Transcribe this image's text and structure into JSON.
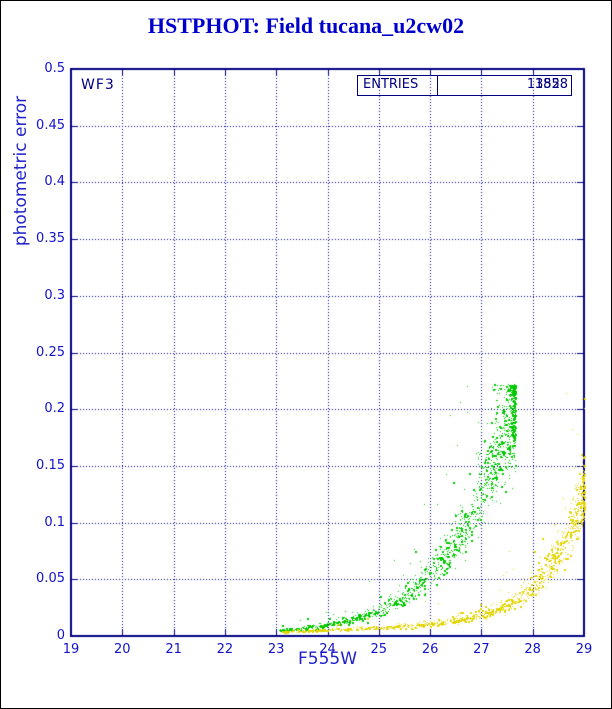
{
  "page": {
    "title": "HSTPHOT: Field tucana_u2cw02"
  },
  "plot": {
    "camera_label": "WF3",
    "entries_label": "ENTRIES",
    "entries_counts": [
      "1858",
      "1352"
    ],
    "xlabel": "F555W",
    "ylabel": "photometric error"
  },
  "colors": {
    "frame": "#000080",
    "grid": "#000080",
    "title_text": "#0000cc",
    "axis_text": "#2222cc",
    "tick_text": "#1313cc",
    "series_green": "#00c800",
    "series_yellow": "#e3d400"
  },
  "chart_data": {
    "type": "scatter",
    "title": "HSTPHOT: Field tucana_u2cw02",
    "annotation": "WF3",
    "xlabel": "F555W",
    "ylabel": "photometric error",
    "xlim": [
      19,
      29
    ],
    "ylim": [
      0,
      0.5
    ],
    "xticks": [
      19,
      20,
      21,
      22,
      23,
      24,
      25,
      26,
      27,
      28,
      29
    ],
    "yticks": [
      0,
      0.05,
      0.1,
      0.15,
      0.2,
      0.25,
      0.3,
      0.35,
      0.4,
      0.45,
      0.5
    ],
    "grid": true,
    "grid_style": "dotted",
    "legend_position": "none",
    "series": [
      {
        "name": "wf3-green-detections",
        "color": "#00c800",
        "entries": 1858,
        "trend_x": [
          23.0,
          23.5,
          24.0,
          24.5,
          25.0,
          25.5,
          26.0,
          26.5,
          27.0,
          27.3,
          27.65
        ],
        "trend_y": [
          0.005,
          0.007,
          0.01,
          0.015,
          0.023,
          0.035,
          0.055,
          0.085,
          0.125,
          0.16,
          0.205
        ],
        "x_min": 23.05,
        "x_max": 27.65,
        "x_skew": 2.3,
        "n_render": 1500,
        "sigma": 0.13,
        "outlier_frac": 0.05,
        "outlier_max": 2.8,
        "y_cap": 0.222
      },
      {
        "name": "wf3-yellow-detections",
        "color": "#e3d400",
        "entries": 1352,
        "trend_x": [
          23.0,
          24.0,
          25.0,
          26.0,
          26.5,
          27.0,
          27.5,
          28.0,
          28.5,
          29.0
        ],
        "trend_y": [
          0.004,
          0.0055,
          0.0075,
          0.011,
          0.014,
          0.019,
          0.028,
          0.044,
          0.075,
          0.125
        ],
        "x_min": 23.1,
        "x_max": 29.0,
        "x_skew": 2.0,
        "n_render": 1150,
        "sigma": 0.12,
        "outlier_frac": 0.05,
        "outlier_max": 3.2,
        "y_cap": 0.215
      }
    ]
  }
}
